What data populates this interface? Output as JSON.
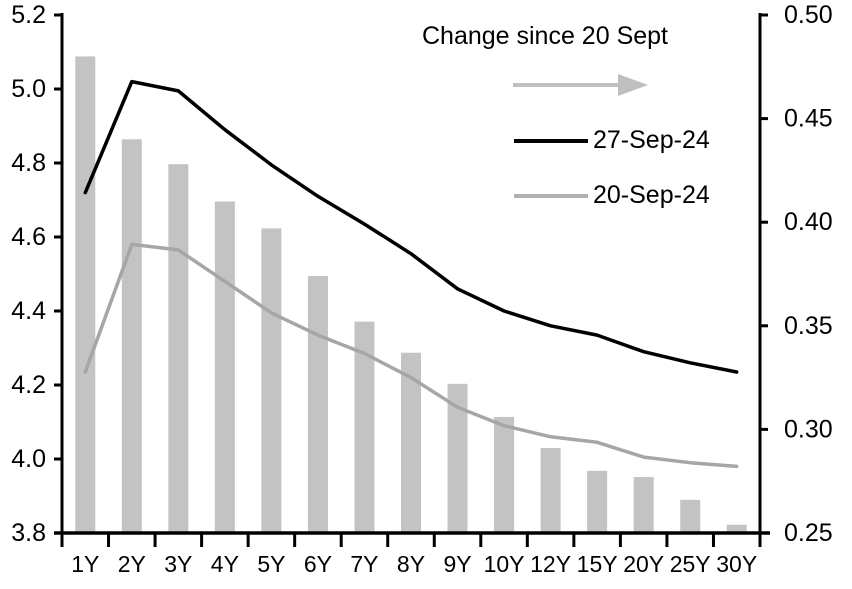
{
  "chart_data": {
    "type": "combo-bar-line",
    "title": "",
    "categories": [
      "1Y",
      "2Y",
      "3Y",
      "4Y",
      "5Y",
      "6Y",
      "7Y",
      "8Y",
      "9Y",
      "10Y",
      "12Y",
      "15Y",
      "20Y",
      "25Y",
      "30Y"
    ],
    "series": [
      {
        "name": "Change since 20 Sept",
        "type": "bar",
        "axis": "right",
        "color": "#c3c3c3",
        "values": [
          0.48,
          0.44,
          0.428,
          0.41,
          0.397,
          0.374,
          0.352,
          0.337,
          0.322,
          0.306,
          0.291,
          0.28,
          0.277,
          0.266,
          0.254
        ]
      },
      {
        "name": "27-Sep-24",
        "type": "line",
        "axis": "left",
        "color": "#000000",
        "values": [
          4.72,
          5.02,
          4.995,
          4.89,
          4.795,
          4.71,
          4.635,
          4.555,
          4.46,
          4.4,
          4.36,
          4.335,
          4.29,
          4.26,
          4.235
        ]
      },
      {
        "name": "20-Sep-24",
        "type": "line",
        "axis": "left",
        "color": "#a6a6a6",
        "values": [
          4.235,
          4.58,
          4.565,
          4.48,
          4.395,
          4.335,
          4.285,
          4.22,
          4.14,
          4.09,
          4.06,
          4.045,
          4.005,
          3.99,
          3.98
        ]
      }
    ],
    "left_axis": {
      "min": 3.8,
      "max": 5.2,
      "tick_labels": [
        "5.2",
        "5.0",
        "4.8",
        "4.6",
        "4.4",
        "4.2",
        "4.0",
        "3.8"
      ]
    },
    "right_axis": {
      "min": 0.25,
      "max": 0.5,
      "tick_labels": [
        "0.50",
        "0.45",
        "0.40",
        "0.35",
        "0.30",
        "0.25"
      ]
    },
    "legend": {
      "title": "Change since 20 Sept",
      "arrow_icon_color": "#bfbfbf",
      "items": [
        {
          "label": "27-Sep-24",
          "swatch_color": "#000000"
        },
        {
          "label": "20-Sep-24",
          "swatch_color": "#b0b0b0"
        }
      ]
    },
    "grid": false,
    "axis_color": "#000000"
  }
}
